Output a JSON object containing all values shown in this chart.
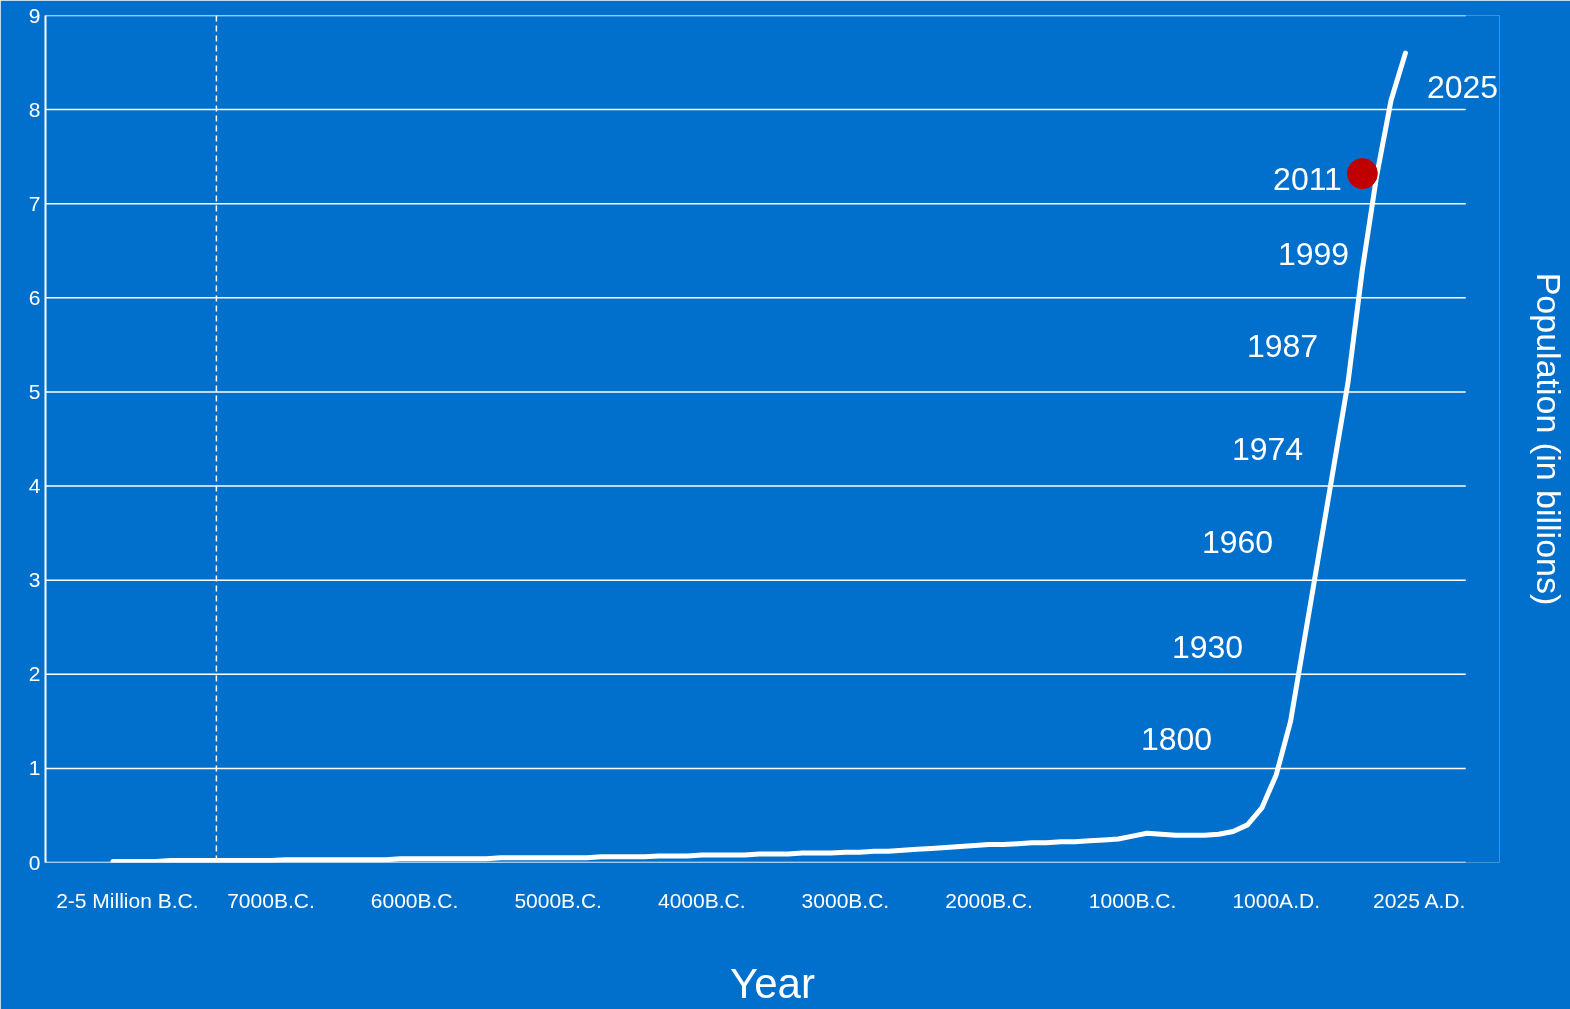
{
  "chart_data": {
    "type": "line",
    "xlabel": "Year",
    "y2label": "Population (in billions)",
    "categories": [
      null,
      null,
      null,
      null,
      null,
      "2-5 Million B.C.",
      null,
      null,
      null,
      null,
      null,
      null,
      null,
      null,
      null,
      "7000B.C.",
      null,
      null,
      null,
      null,
      null,
      null,
      null,
      null,
      null,
      "6000B.C.",
      null,
      null,
      null,
      null,
      null,
      null,
      null,
      null,
      null,
      "5000B.C.",
      null,
      null,
      null,
      null,
      null,
      null,
      null,
      null,
      null,
      "4000B.C.",
      null,
      null,
      null,
      null,
      null,
      null,
      null,
      null,
      null,
      "3000B.C.",
      null,
      null,
      null,
      null,
      null,
      null,
      null,
      null,
      null,
      "2000B.C.",
      null,
      null,
      null,
      null,
      null,
      null,
      null,
      null,
      null,
      "1000B.C.",
      null,
      null,
      null,
      null,
      null,
      null,
      null,
      null,
      null,
      "1000A.D.",
      null,
      null,
      null,
      null,
      null,
      null,
      null,
      null,
      null,
      "2025 A.D.",
      null,
      null,
      null
    ],
    "ylim": [
      0,
      9
    ],
    "yticks": [
      0,
      1,
      2,
      3,
      4,
      5,
      6,
      7,
      8,
      9
    ],
    "grid": "y",
    "series": [
      {
        "color": "#ffffff",
        "values": [
          null,
          null,
          null,
          null,
          0.01,
          0.01,
          0.01,
          0.01,
          0.02,
          0.02,
          0.02,
          0.02,
          0.02,
          0.02,
          0.02,
          0.02,
          0.03,
          0.03,
          0.03,
          0.03,
          0.03,
          0.03,
          0.03,
          0.03,
          0.04,
          0.04,
          0.04,
          0.04,
          0.04,
          0.04,
          0.04,
          0.05,
          0.05,
          0.05,
          0.05,
          0.05,
          0.05,
          0.05,
          0.06,
          0.06,
          0.06,
          0.06,
          0.07,
          0.07,
          0.07,
          0.08,
          0.08,
          0.08,
          0.08,
          0.09,
          0.09,
          0.09,
          0.1,
          0.1,
          0.1,
          0.11,
          0.11,
          0.12,
          0.12,
          0.13,
          0.14,
          0.15,
          0.16,
          0.17,
          0.18,
          0.19,
          0.19,
          0.2,
          0.21,
          0.21,
          0.22,
          0.22,
          0.23,
          0.24,
          0.25,
          0.28,
          0.31,
          0.3,
          0.29,
          0.29,
          0.29,
          0.3,
          0.33,
          0.4,
          0.58,
          0.93,
          1.5,
          2.4,
          3.3,
          4.2,
          5.1,
          6.3,
          7.3,
          8.1,
          8.6,
          null,
          null,
          null,
          null
        ]
      },
      {
        "type": "scatter",
        "color": "#c00000",
        "values": [
          null,
          null,
          null,
          null,
          null,
          null,
          null,
          null,
          null,
          null,
          null,
          null,
          null,
          null,
          null,
          null,
          null,
          null,
          null,
          null,
          null,
          null,
          null,
          null,
          null,
          null,
          null,
          null,
          null,
          null,
          null,
          null,
          null,
          null,
          null,
          null,
          null,
          null,
          null,
          null,
          null,
          null,
          null,
          null,
          null,
          null,
          null,
          null,
          null,
          null,
          null,
          null,
          null,
          null,
          null,
          null,
          null,
          null,
          null,
          null,
          null,
          null,
          null,
          null,
          null,
          null,
          null,
          null,
          null,
          null,
          null,
          null,
          null,
          null,
          null,
          null,
          null,
          null,
          null,
          null,
          null,
          null,
          null,
          null,
          null,
          null,
          null,
          null,
          null,
          null,
          null,
          7.32,
          null,
          null,
          null,
          null,
          null,
          null,
          null
        ]
      }
    ],
    "annotations": [
      "1800",
      "1930",
      "1960",
      "1974",
      "1987",
      "1999",
      "2011",
      "2025"
    ]
  }
}
